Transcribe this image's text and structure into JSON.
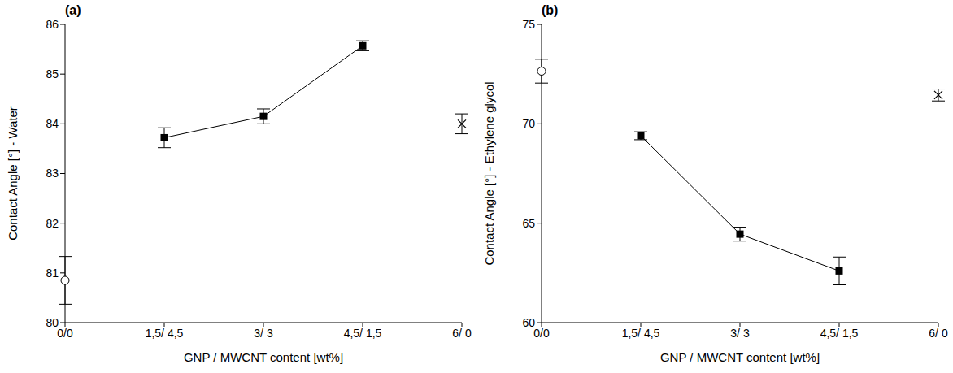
{
  "chart_data": [
    {
      "type": "scatter",
      "title": "(a)",
      "x_label": "GNP / MWCNT content [wt%]",
      "y_label": "Contact Angle [°] - Water",
      "categories": [
        "0/0",
        "1,5/ 4,5",
        "3/ 3",
        "4,5/ 1,5",
        "6/ 0"
      ],
      "ylim": [
        80,
        86
      ],
      "yticks": [
        80,
        81,
        82,
        83,
        84,
        85,
        86
      ],
      "grid": false,
      "series": [
        {
          "color": "#000000",
          "marker": "open_circle",
          "line_style": "none",
          "values": [
            80.85,
            null,
            null,
            null,
            null
          ],
          "errors": [
            0.48,
            null,
            null,
            null,
            null
          ]
        },
        {
          "color": "#000000",
          "marker": "square",
          "line_style": "solid",
          "values": [
            null,
            83.72,
            84.15,
            85.57,
            null
          ],
          "errors": [
            null,
            0.2,
            0.15,
            0.1,
            null
          ]
        },
        {
          "color": "#000000",
          "marker": "x",
          "line_style": "none",
          "values": [
            null,
            null,
            null,
            null,
            84.0
          ],
          "errors": [
            null,
            null,
            null,
            null,
            0.2
          ]
        }
      ]
    },
    {
      "type": "scatter",
      "title": "(b)",
      "x_label": "GNP / MWCNT content [wt%]",
      "y_label": "Contact Angle [°] - Ethylene glycol",
      "categories": [
        "0/0",
        "1,5/ 4,5",
        "3/ 3",
        "4,5/ 1,5",
        "6/ 0"
      ],
      "ylim": [
        60,
        75
      ],
      "yticks": [
        60,
        65,
        70,
        75
      ],
      "grid": false,
      "series": [
        {
          "color": "#000000",
          "marker": "open_circle",
          "line_style": "none",
          "values": [
            72.65,
            null,
            null,
            null,
            null
          ],
          "errors": [
            0.6,
            null,
            null,
            null,
            null
          ]
        },
        {
          "color": "#000000",
          "marker": "square",
          "line_style": "solid",
          "values": [
            null,
            69.4,
            64.45,
            62.6,
            null
          ],
          "errors": [
            null,
            0.2,
            0.35,
            0.7,
            null
          ]
        },
        {
          "color": "#000000",
          "marker": "x",
          "line_style": "none",
          "values": [
            null,
            null,
            null,
            null,
            71.45
          ],
          "errors": [
            null,
            null,
            null,
            null,
            0.3
          ]
        }
      ]
    }
  ]
}
